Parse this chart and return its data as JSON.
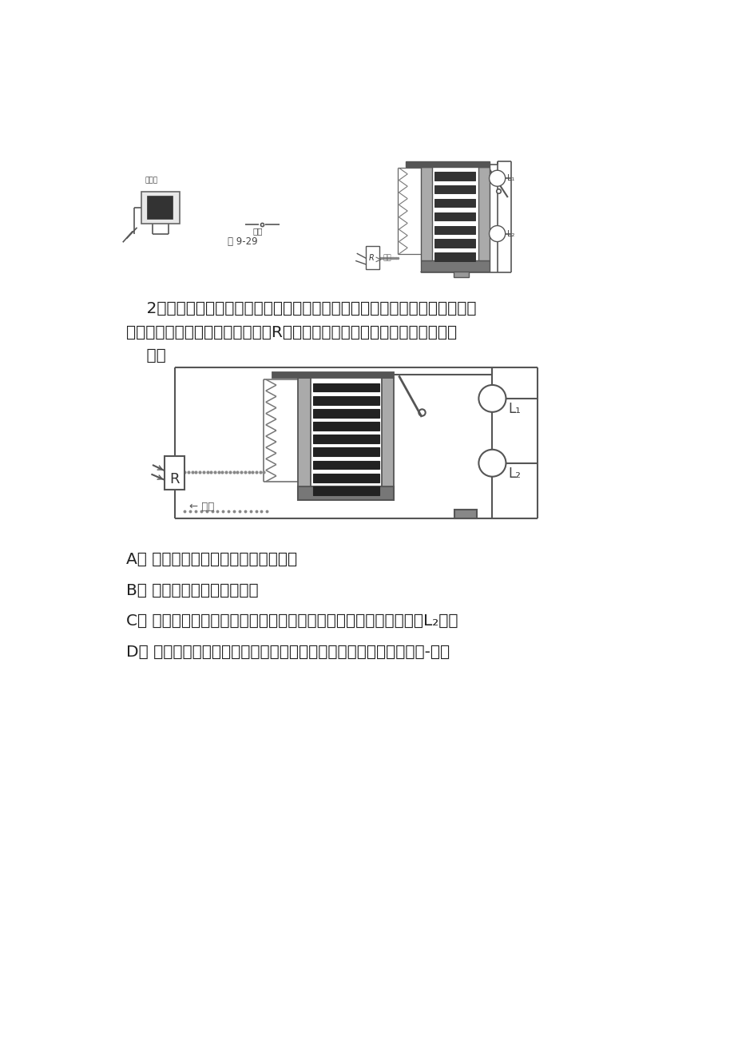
{
  "background_color": "#ffffff",
  "page_width": 9.2,
  "page_height": 13.02,
  "text_color": "#222222",
  "question_text_line1": "    2、如下图，用热敏电阻（受温度影响阻值会发生变化的电阻）和电磁继电器",
  "question_text_line2": "组成的火警器的示意图，热敏电阻R受热后，其阻值会减小，将发生的变化是",
  "question_text_line3": "    （）",
  "option_A": "A、 电磁继电器控制电路中的电流减小",
  "option_B": "B、 电磁继电器控制电路断开",
  "option_C": "C、 当电阻减小到某特定值时，电磁铁的磁性增强足以吸引下衔铁，L₂发光",
  "option_D": "D、 当电阻减小到某特定值时，电磁铁的磁性减弱使得衔铁能复位，-发光",
  "fig_label": "图 9-29"
}
